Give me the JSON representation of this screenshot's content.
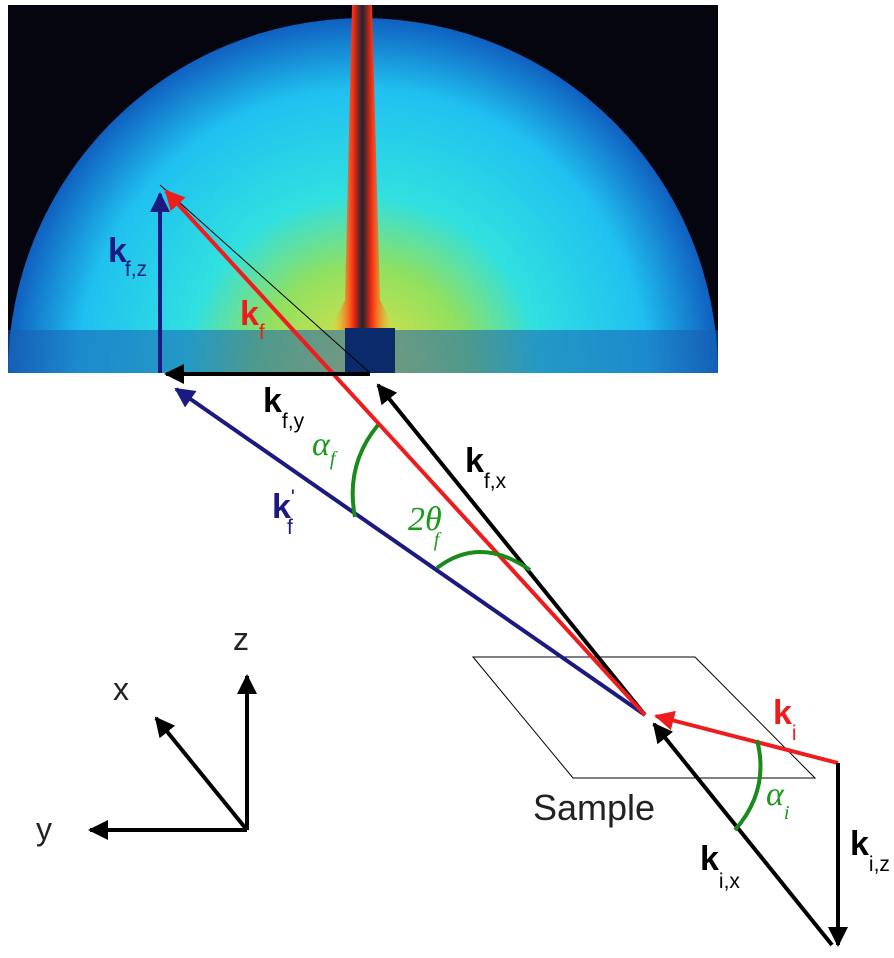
{
  "vectors": [
    {
      "symbol": "k",
      "subscript": "f,z"
    },
    {
      "symbol": "k",
      "subscript": "f"
    },
    {
      "symbol": "k",
      "subscript": "f,y"
    },
    {
      "symbol": "k",
      "subscript": "f,x"
    },
    {
      "symbol": "k",
      "superscript": "'",
      "subscript": "f"
    },
    {
      "symbol": "k",
      "subscript": "i"
    },
    {
      "symbol": "k",
      "subscript": "i,x"
    },
    {
      "symbol": "k",
      "subscript": "i,z"
    }
  ],
  "angles": [
    {
      "symbol": "α",
      "subscript": "f"
    },
    {
      "symbol": "2θ",
      "subscript": "f"
    },
    {
      "symbol": "α",
      "subscript": "i"
    }
  ],
  "sample_label": "Sample",
  "axes": [
    "x",
    "y",
    "z"
  ]
}
